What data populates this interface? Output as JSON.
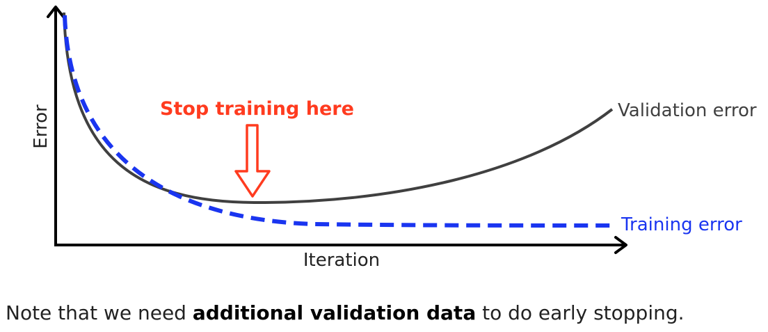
{
  "chart_data": {
    "type": "line",
    "xlabel": "Iteration",
    "ylabel": "Error",
    "grid": false,
    "legend": "inline labels at line ends",
    "annotation": {
      "text": "Stop training here",
      "color": "#ff3b1f"
    },
    "series": [
      {
        "name": "Validation error",
        "color": "#404040",
        "style": "solid"
      },
      {
        "name": "Training error",
        "color": "#1a35f0",
        "style": "dashed"
      }
    ]
  },
  "note": {
    "before": "Note that we need ",
    "bold": "additional validation data",
    "after": " to do early stopping."
  }
}
